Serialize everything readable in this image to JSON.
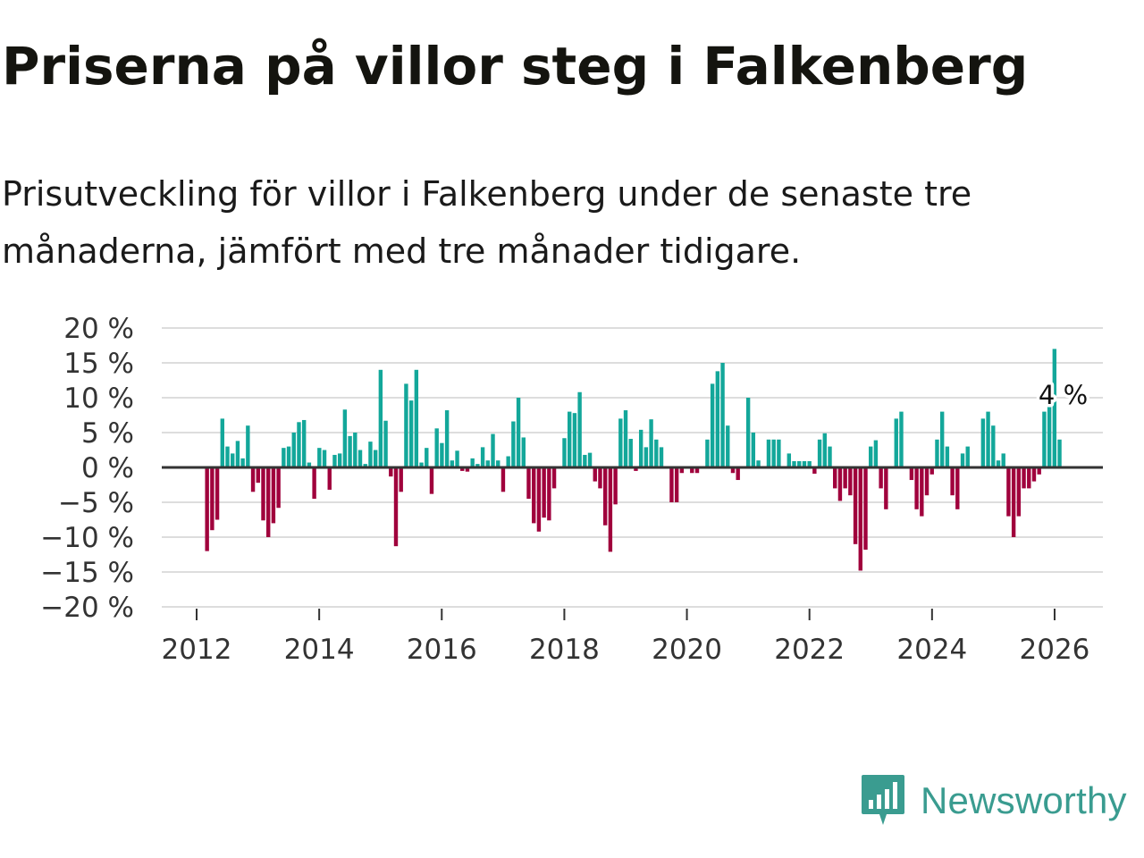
{
  "title": "Priserna på villor steg i Falkenberg",
  "subtitle": "Prisutveckling för villor i Falkenberg under de senaste tre månaderna, jämfört med tre månader tidigare.",
  "brand": {
    "name": "Newsworthy",
    "color": "#3a9c90",
    "icon": "newsworthy-logo-icon"
  },
  "colors": {
    "positive": "#13a79a",
    "negative": "#a0003c",
    "zero_line": "#333333",
    "grid": "#dddddd"
  },
  "chart_data": {
    "type": "bar",
    "title": "Priserna på villor steg i Falkenberg",
    "xlabel": "",
    "ylabel": "",
    "ylim": [
      -20,
      20
    ],
    "yticks": [
      20,
      15,
      10,
      5,
      0,
      -5,
      -10,
      -15,
      -20
    ],
    "ytick_labels": [
      "20 %",
      "15 %",
      "10 %",
      "5 %",
      "0 %",
      "−5 %",
      "−10 %",
      "−15 %",
      "−20 %"
    ],
    "xticks": [
      2012,
      2014,
      2016,
      2018,
      2020,
      2022,
      2024,
      2026
    ],
    "xtick_labels": [
      "2012",
      "2014",
      "2016",
      "2018",
      "2020",
      "2022",
      "2024",
      "2026"
    ],
    "x_start": 2012.17,
    "x_step": 0.0833,
    "grid": true,
    "annotation": {
      "label": "4 %",
      "value": 4
    },
    "values": [
      -12,
      -9,
      -7.5,
      7,
      3,
      2,
      3.8,
      1.3,
      6,
      -3.5,
      -2.2,
      -7.6,
      -10,
      -8,
      -5.8,
      2.8,
      3,
      5,
      6.5,
      6.8,
      0.7,
      -4.5,
      2.8,
      2.5,
      -3.2,
      1.8,
      2,
      8.3,
      4.5,
      5,
      2.5,
      0.5,
      3.7,
      2.5,
      14,
      6.7,
      -1.3,
      -11.3,
      -3.5,
      12,
      9.6,
      14,
      0.7,
      2.8,
      -3.8,
      5.6,
      3.5,
      8.2,
      1,
      2.4,
      -0.5,
      -0.6,
      1.3,
      0.5,
      2.9,
      1,
      4.8,
      1,
      -3.5,
      1.6,
      6.6,
      10,
      4.3,
      -4.5,
      -8,
      -9.2,
      -7.2,
      -7.6,
      -3,
      0,
      4.2,
      8,
      7.8,
      10.8,
      1.8,
      2.1,
      -2,
      -3,
      -8.3,
      -12.1,
      -5.3,
      7,
      8.2,
      4.1,
      -0.5,
      5.4,
      2.9,
      6.9,
      4,
      2.9,
      0,
      -5,
      -5,
      -0.8,
      0,
      -0.8,
      -0.8,
      0,
      4,
      12,
      13.8,
      15,
      6,
      -0.8,
      -1.8,
      0,
      10,
      5,
      1,
      0,
      4,
      4,
      4,
      0,
      2,
      0.9,
      0.9,
      0.9,
      0.9,
      -0.9,
      4,
      4.9,
      3,
      -3,
      -4.8,
      -3,
      -4,
      -11,
      -14.8,
      -11.8,
      3,
      3.9,
      -3,
      -6,
      0,
      7,
      8,
      0,
      -1.8,
      -6,
      -7,
      -4,
      -1,
      4,
      8,
      3,
      -4,
      -6,
      2,
      3,
      0,
      0,
      7,
      8,
      6,
      1,
      2,
      -7,
      -10,
      -7,
      -3,
      -3,
      -2,
      -1,
      8,
      9,
      17,
      4
    ]
  }
}
